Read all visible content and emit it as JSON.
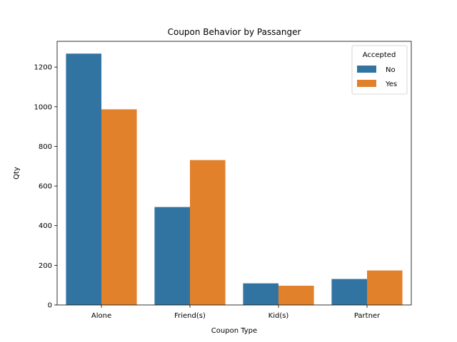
{
  "chart_data": {
    "type": "bar",
    "title": "Coupon Behavior by Passanger",
    "xlabel": "Coupon Type",
    "ylabel": "Qty",
    "categories": [
      "Alone",
      "Friend(s)",
      "Kid(s)",
      "Partner"
    ],
    "series": [
      {
        "name": "No",
        "color": "#3274a1",
        "values": [
          1268,
          494,
          109,
          131
        ]
      },
      {
        "name": "Yes",
        "color": "#e1812c",
        "values": [
          987,
          731,
          97,
          174
        ]
      }
    ],
    "ylim": [
      0,
      1330
    ],
    "yticks": [
      0,
      200,
      400,
      600,
      800,
      1000,
      1200
    ],
    "legend": {
      "title": "Accepted",
      "position": "top-right"
    },
    "grid": false
  }
}
